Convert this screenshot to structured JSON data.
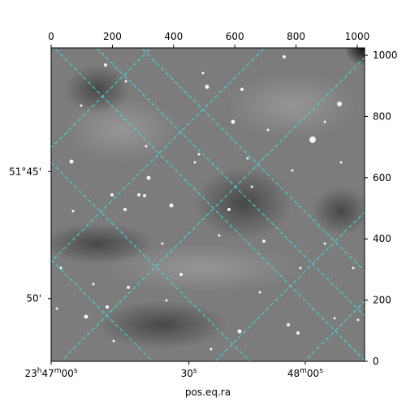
{
  "chart_data": {
    "type": "image",
    "top_axis": {
      "ticks": [
        0,
        200,
        400,
        600,
        800,
        1000
      ],
      "range": [
        0,
        1024
      ]
    },
    "right_axis": {
      "ticks": [
        0,
        200,
        400,
        600,
        800,
        1000
      ],
      "range": [
        0,
        1024
      ]
    },
    "bottom_axis": {
      "title": "pos.eq.ra",
      "ticks": [
        {
          "pixel": 0,
          "label_main": "23",
          "sup1": "h",
          "mid": "47",
          "sup2": "m",
          "end": "00",
          "sup3": "s"
        },
        {
          "pixel": 450,
          "label_main": "30",
          "sup3": "s"
        },
        {
          "pixel": 830,
          "label_main": "48",
          "sup2": "m",
          "end": "00",
          "sup3": "s"
        }
      ]
    },
    "left_axis": {
      "ticks": [
        {
          "pixel": 620,
          "label": "51°45'"
        },
        {
          "pixel": 205,
          "label": "50'"
        }
      ]
    },
    "grid": {
      "on": true,
      "color": "#40e0e0",
      "style": "dashed"
    },
    "image": {
      "colormap": "gray",
      "background": "#7a7a7a"
    }
  }
}
